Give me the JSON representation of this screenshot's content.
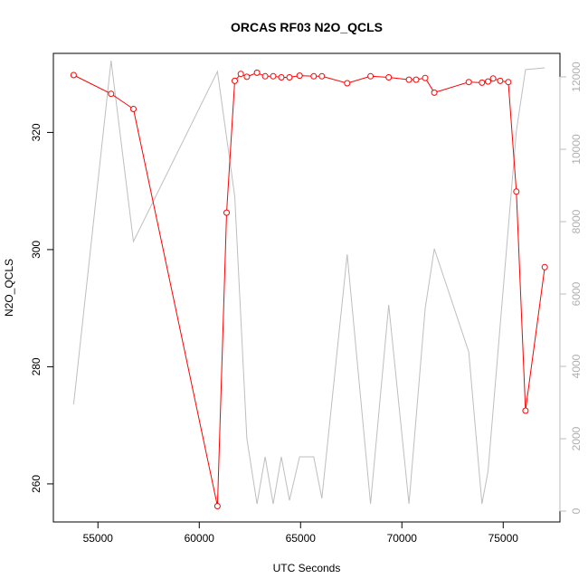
{
  "chart_data": {
    "type": "line",
    "title": "ORCAS RF03 N2O_QCLS",
    "xlabel": "UTC Seconds",
    "ylabel": "N2O_QCLS",
    "xlim": [
      52800,
      77800
    ],
    "ylim": [
      253.5,
      333.5
    ],
    "y2lim": [
      -300,
      12650
    ],
    "x_ticks": [
      55000,
      60000,
      65000,
      70000,
      75000
    ],
    "y_ticks": [
      260,
      280,
      300,
      320
    ],
    "y2_ticks": [
      0,
      2000,
      4000,
      6000,
      8000,
      10000,
      12000
    ],
    "colors": {
      "primary": "#ff0000",
      "secondary": "#bebebe"
    },
    "series": [
      {
        "axis": "left",
        "style": "line+points",
        "x": [
          53800,
          55650,
          56750,
          60900,
          61350,
          61750,
          62050,
          62350,
          62850,
          63250,
          63650,
          64050,
          64450,
          64950,
          65650,
          66050,
          67300,
          68450,
          69350,
          70350,
          70700,
          71150,
          71600,
          73300,
          73950,
          74250,
          74500,
          74850,
          75250,
          75650,
          76100,
          77050
        ],
        "y": [
          329.8,
          326.6,
          324.0,
          256.2,
          306.3,
          328.8,
          330.0,
          329.5,
          330.2,
          329.6,
          329.6,
          329.4,
          329.4,
          329.7,
          329.6,
          329.6,
          328.4,
          329.6,
          329.4,
          329.0,
          329.0,
          329.3,
          326.8,
          328.6,
          328.5,
          328.7,
          329.2,
          328.8,
          328.6,
          309.9,
          272.5,
          297.0
        ]
      },
      {
        "axis": "right",
        "style": "line",
        "x": [
          53800,
          55650,
          56750,
          60900,
          61750,
          62350,
          62850,
          63250,
          63650,
          64050,
          64450,
          64950,
          65650,
          66050,
          67300,
          68450,
          69350,
          70350,
          71150,
          71600,
          73300,
          73950,
          74250,
          75650,
          76100,
          77050
        ],
        "y": [
          2950,
          12450,
          7450,
          12150,
          8700,
          2000,
          200,
          1500,
          200,
          1500,
          300,
          1500,
          1500,
          350,
          7100,
          200,
          5700,
          200,
          5600,
          7250,
          4400,
          200,
          1100,
          10500,
          12200,
          12250
        ]
      }
    ]
  }
}
